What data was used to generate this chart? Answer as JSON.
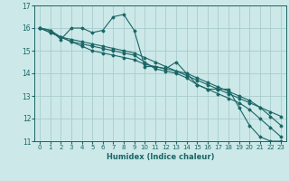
{
  "title": "",
  "xlabel": "Humidex (Indice chaleur)",
  "bg_color": "#cce8e8",
  "grid_color": "#aacccc",
  "line_color": "#1a6666",
  "xlim": [
    -0.5,
    23.5
  ],
  "ylim": [
    11,
    17
  ],
  "yticks": [
    11,
    12,
    13,
    14,
    15,
    16,
    17
  ],
  "xticks": [
    0,
    1,
    2,
    3,
    4,
    5,
    6,
    7,
    8,
    9,
    10,
    11,
    12,
    13,
    14,
    15,
    16,
    17,
    18,
    19,
    20,
    21,
    22,
    23
  ],
  "series": [
    [
      16.0,
      15.9,
      15.5,
      16.0,
      16.0,
      15.8,
      15.9,
      16.5,
      16.6,
      15.9,
      14.3,
      14.3,
      14.2,
      14.5,
      14.0,
      13.5,
      13.3,
      13.3,
      13.3,
      12.5,
      11.7,
      11.2,
      11.0,
      11.0
    ],
    [
      16.0,
      15.9,
      15.6,
      15.5,
      15.4,
      15.3,
      15.2,
      15.1,
      15.0,
      14.9,
      14.7,
      14.5,
      14.3,
      14.1,
      13.9,
      13.7,
      13.5,
      13.3,
      13.1,
      12.9,
      12.7,
      12.5,
      12.3,
      12.1
    ],
    [
      16.0,
      15.8,
      15.6,
      15.4,
      15.2,
      15.0,
      14.9,
      14.8,
      14.7,
      14.6,
      14.4,
      14.3,
      14.2,
      14.1,
      14.0,
      13.8,
      13.6,
      13.4,
      13.2,
      13.0,
      12.8,
      12.5,
      12.1,
      11.7
    ],
    [
      16.0,
      15.8,
      15.6,
      15.4,
      15.3,
      15.2,
      15.1,
      15.0,
      14.9,
      14.8,
      14.5,
      14.2,
      14.1,
      14.0,
      13.8,
      13.5,
      13.3,
      13.1,
      12.9,
      12.7,
      12.4,
      12.0,
      11.6,
      11.2
    ]
  ]
}
